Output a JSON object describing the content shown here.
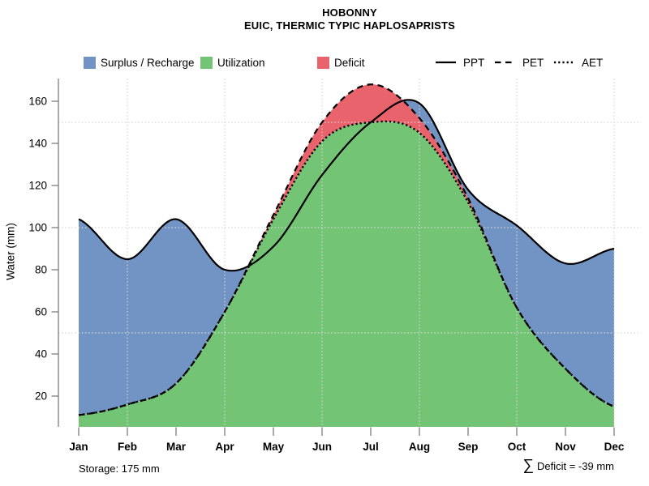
{
  "title": "HOBONNY",
  "subtitle": "EUIC, THERMIC TYPIC HAPLOSAPRISTS",
  "legend": {
    "fills": [
      {
        "label": "Surplus / Recharge",
        "color": "#7194c4"
      },
      {
        "label": "Utilization",
        "color": "#74c476"
      },
      {
        "label": "Deficit",
        "color": "#e8636b"
      }
    ],
    "lines": [
      {
        "label": "PPT",
        "style": "solid"
      },
      {
        "label": "PET",
        "style": "dashed"
      },
      {
        "label": "AET",
        "style": "dotted"
      }
    ]
  },
  "footer": {
    "storage": "Storage: 175 mm",
    "sigma": "∑",
    "deficit": "Deficit = -39 mm"
  },
  "chart_data": {
    "type": "area",
    "title": "HOBONNY",
    "subtitle": "EUIC, THERMIC TYPIC HAPLOSAPRISTS",
    "xlabel": "",
    "ylabel": "Water (mm)",
    "categories": [
      "Jan",
      "Feb",
      "Mar",
      "Apr",
      "May",
      "Jun",
      "Jul",
      "Aug",
      "Sep",
      "Oct",
      "Nov",
      "Dec"
    ],
    "yticks": [
      20,
      40,
      60,
      80,
      100,
      120,
      140,
      160
    ],
    "ylim": [
      5,
      171
    ],
    "grid": {
      "y_values": [
        50,
        100,
        150
      ],
      "x_categories": [
        "Feb",
        "Apr",
        "Jun",
        "Aug",
        "Oct",
        "Dec"
      ]
    },
    "line_color": "#000000",
    "axis_color": "#7d7d7d",
    "grid_color": "#d6d6d6",
    "series": [
      {
        "name": "PPT",
        "line": "solid",
        "values": [
          104,
          85,
          104,
          80,
          91,
          125,
          150,
          159,
          118,
          101,
          83,
          90
        ]
      },
      {
        "name": "PET",
        "line": "dashed",
        "values": [
          11,
          16,
          26,
          60,
          106,
          150,
          168,
          152,
          114,
          62,
          33,
          15
        ]
      },
      {
        "name": "AET",
        "line": "dotted",
        "values": [
          11,
          16,
          26,
          60,
          104,
          141,
          150,
          145,
          112,
          62,
          33,
          15
        ]
      }
    ],
    "areas": [
      {
        "name": "Surplus / Recharge",
        "color": "#7194c4",
        "rule": "between PET and PPT where PPT > PET"
      },
      {
        "name": "Utilization",
        "color": "#74c476",
        "rule": "area under AET"
      },
      {
        "name": "Deficit",
        "color": "#e8636b",
        "rule": "between AET and PET where PET > AET"
      }
    ],
    "annotations": {
      "storage_mm": 175,
      "deficit_sum_mm": -39
    },
    "legend_position": "top"
  }
}
